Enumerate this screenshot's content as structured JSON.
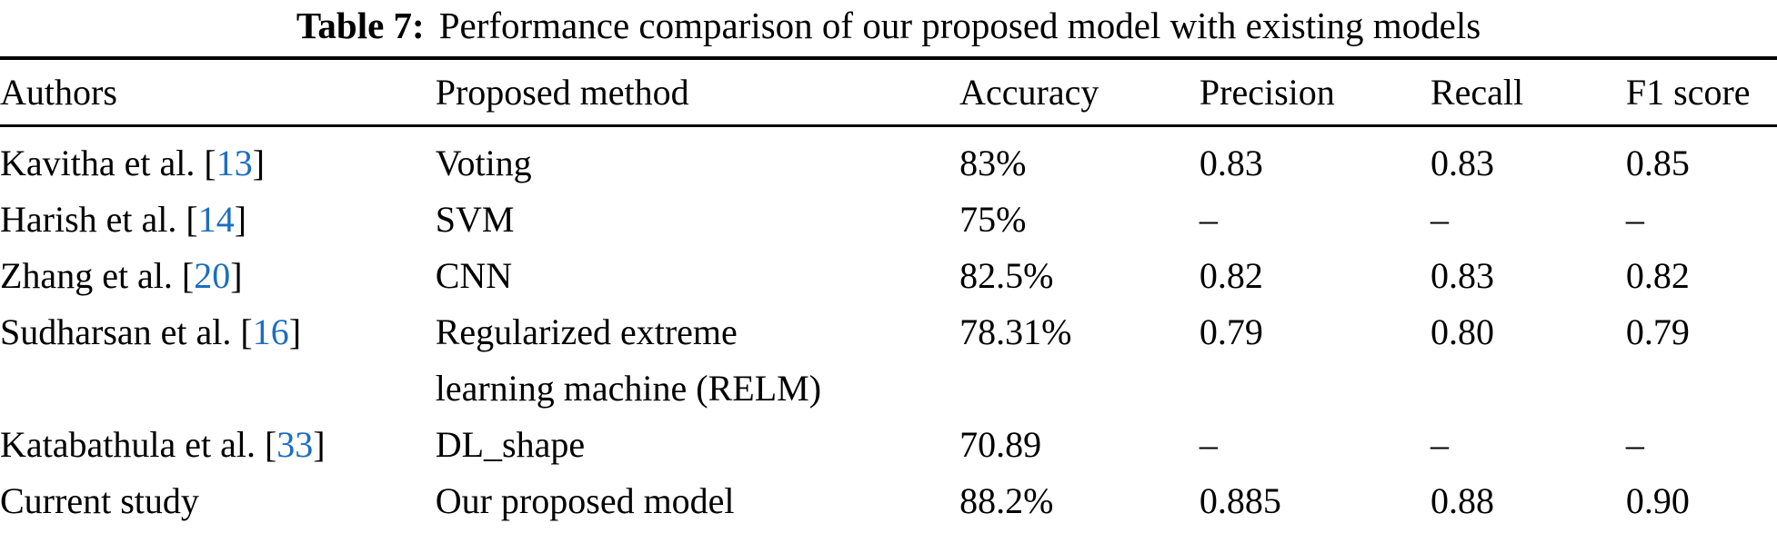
{
  "colors": {
    "text": "#000000",
    "background": "#ffffff",
    "rule": "#000000",
    "citation_blue": "#1b6ec0"
  },
  "caption": {
    "label": "Table 7:",
    "text": "Performance comparison of our proposed model with existing models"
  },
  "table": {
    "columns": [
      "Authors",
      "Proposed method",
      "Accuracy",
      "Precision",
      "Recall",
      "F1 score"
    ],
    "rows": [
      {
        "author_pre": "Kavitha et al. [",
        "cite_num": "13",
        "author_post": "]",
        "method": "Voting",
        "accuracy": "83%",
        "precision": "0.83",
        "recall": "0.83",
        "f1": "0.85"
      },
      {
        "author_pre": "Harish et al. [",
        "cite_num": "14",
        "author_post": "]",
        "method": "SVM",
        "accuracy": "75%",
        "precision": "–",
        "recall": "–",
        "f1": "–"
      },
      {
        "author_pre": "Zhang et al. [",
        "cite_num": "20",
        "author_post": "]",
        "method": "CNN",
        "accuracy": "82.5%",
        "precision": "0.82",
        "recall": "0.83",
        "f1": "0.82"
      },
      {
        "author_pre": "Sudharsan et al. [",
        "cite_num": "16",
        "author_post": "]",
        "method": "Regularized extreme learning machine (RELM)",
        "accuracy": "78.31%",
        "precision": "0.79",
        "recall": "0.80",
        "f1": "0.79"
      },
      {
        "author_pre": "Katabathula et al. [",
        "cite_num": "33",
        "author_post": "]",
        "method": "DL_shape",
        "accuracy": "70.89",
        "precision": "–",
        "recall": "–",
        "f1": "–"
      },
      {
        "author_pre": "Current study",
        "cite_num": "",
        "author_post": "",
        "method": "Our proposed model",
        "accuracy": "88.2%",
        "precision": "0.885",
        "recall": "0.88",
        "f1": "0.90"
      }
    ]
  }
}
